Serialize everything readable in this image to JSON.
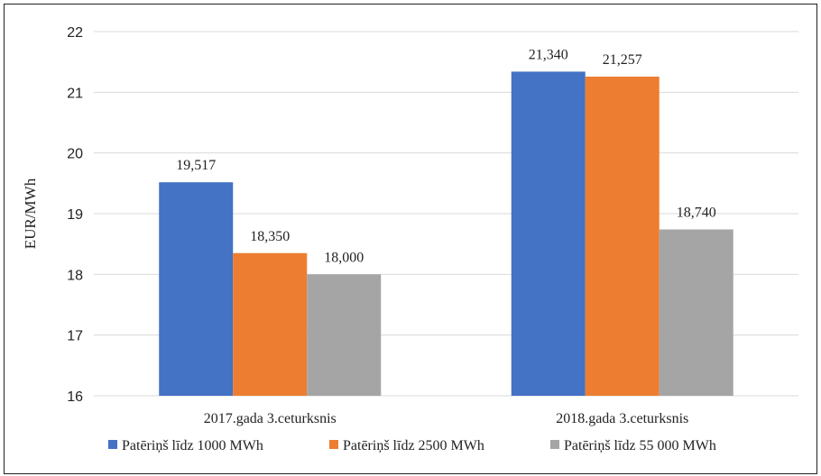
{
  "chart_data": {
    "type": "bar",
    "ylabel": "EUR/MWh",
    "ylim": [
      16,
      22
    ],
    "yticks": [
      16,
      17,
      18,
      19,
      20,
      21,
      22
    ],
    "categories": [
      "2017.gada 3.ceturksnis",
      "2018.gada 3.ceturksnis"
    ],
    "series": [
      {
        "name": "Patēriņš līdz 1000 MWh",
        "color": "#4472C4",
        "values": [
          19.517,
          21.34
        ],
        "labels": [
          "19,517",
          "21,340"
        ]
      },
      {
        "name": "Patēriņš līdz 2500 MWh",
        "color": "#ED7D31",
        "values": [
          18.35,
          21.257
        ],
        "labels": [
          "18,350",
          "21,257"
        ]
      },
      {
        "name": "Patēriņš līdz 55 000 MWh",
        "color": "#A5A5A5",
        "values": [
          18.0,
          18.74
        ],
        "labels": [
          "18,000",
          "18,740"
        ]
      }
    ],
    "legend": "bottom",
    "grid": true
  }
}
